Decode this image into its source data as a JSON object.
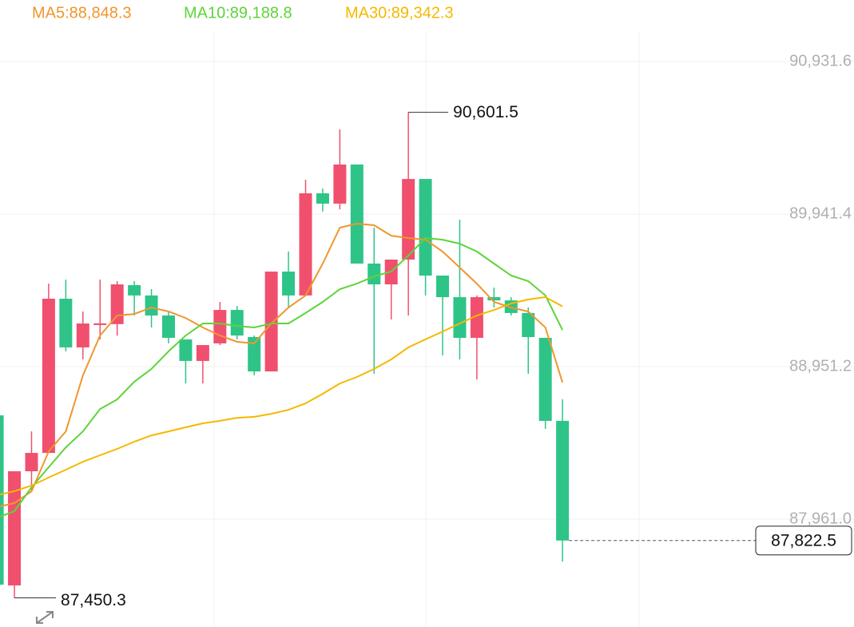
{
  "chart_data": {
    "type": "candlestick",
    "up_color": "#f0506e",
    "down_color": "#2ec488",
    "candles": {
      "open": [
        88635,
        87531,
        88272,
        88391,
        89392,
        89076,
        89221,
        89227,
        89480,
        89413,
        89283,
        89128,
        88988,
        89102,
        89319,
        89143,
        88920,
        89568,
        89413,
        90076,
        90009,
        90263,
        89620,
        89485,
        89646,
        90169,
        89542,
        89402,
        89138,
        89402,
        89381,
        89299,
        89138,
        88599
      ],
      "high": [
        88635,
        88272,
        88531,
        89490,
        89516,
        89309,
        89516,
        89506,
        89506,
        89454,
        89309,
        89128,
        89091,
        89371,
        89345,
        89153,
        89568,
        89698,
        90164,
        90107,
        90491,
        90263,
        89853,
        89646,
        90601.5,
        90169,
        89542,
        89905,
        89413,
        89464,
        89402,
        89335,
        89138,
        88739
      ],
      "low": [
        87521,
        87450.3,
        88143,
        88391,
        89050,
        88998,
        89128,
        89153,
        89283,
        89205,
        89102,
        88842,
        88842,
        89091,
        89128,
        88894,
        88920,
        89335,
        89413,
        89957,
        89972,
        89620,
        88905,
        89257,
        89283,
        89413,
        89024,
        88998,
        88868,
        89335,
        89283,
        88905,
        88547,
        87686
      ],
      "close": [
        87536,
        88272,
        88391,
        89392,
        89076,
        89231,
        89232,
        89485,
        89413,
        89283,
        89138,
        88988,
        89091,
        89319,
        89153,
        88920,
        89568,
        89413,
        90076,
        90009,
        90263,
        89620,
        89485,
        89646,
        90169,
        89542,
        89402,
        89138,
        89402,
        89381,
        89299,
        89143,
        88599,
        87822.5
      ]
    },
    "series": [
      {
        "name": "MA5:88,848.3",
        "color": "#f0962e",
        "values": [
          88040,
          88065,
          88142,
          88401,
          88531,
          88894,
          89153,
          89283,
          89293,
          89335,
          89309,
          89267,
          89205,
          89153,
          89112,
          89102,
          89231,
          89335,
          89413,
          89620,
          89853,
          89879,
          89869,
          89801,
          89786,
          89775,
          89698,
          89594,
          89490,
          89371,
          89335,
          89309,
          89205,
          88848.3
        ]
      },
      {
        "name": "MA10:89,188.8",
        "color": "#5ed43a",
        "values": [
          87971,
          88013,
          88168,
          88298,
          88427,
          88531,
          88676,
          88738,
          88853,
          88936,
          89050,
          89153,
          89231,
          89231,
          89215,
          89205,
          89231,
          89231,
          89299,
          89371,
          89454,
          89490,
          89537,
          89568,
          89672,
          89786,
          89775,
          89749,
          89698,
          89620,
          89542,
          89506,
          89413,
          89188.8
        ]
      },
      {
        "name": "MA30:89,342.3",
        "color": "#f5b800",
        "values": [
          88117,
          88143,
          88179,
          88231,
          88282,
          88334,
          88376,
          88417,
          88464,
          88505,
          88531,
          88557,
          88583,
          88599,
          88619,
          88625,
          88645,
          88671,
          88713,
          88775,
          88842,
          88884,
          88936,
          88998,
          89076,
          89128,
          89179,
          89231,
          89283,
          89319,
          89361,
          89387,
          89402,
          89342.3
        ]
      }
    ],
    "ylim": [
      87261.2,
      91330.7
    ],
    "yticks": [
      {
        "value": 87961.0,
        "label": "87,961.0"
      },
      {
        "value": 88951.2,
        "label": "88,951.2"
      },
      {
        "value": 89941.4,
        "label": "89,941.4"
      },
      {
        "value": 90931.6,
        "label": "90,931.6"
      }
    ],
    "grid": true,
    "annotations": [
      {
        "kind": "high",
        "value": 90601.5,
        "label": "90,601.5"
      },
      {
        "kind": "low",
        "value": 87450.3,
        "label": "87,450.3"
      },
      {
        "kind": "last",
        "value": 87822.5,
        "label": "87,822.5"
      }
    ]
  }
}
